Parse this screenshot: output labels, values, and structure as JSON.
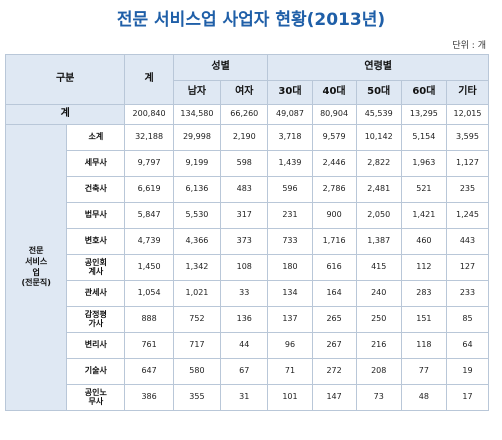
{
  "title": "전문 서비스업 사업자 현황(2013년)",
  "unit": "단위 : 개",
  "header": {
    "group": "구분",
    "total": "계",
    "gender": "성별",
    "male": "남자",
    "female": "여자",
    "age": "연령별",
    "ages": [
      "30대",
      "40대",
      "50대",
      "60대",
      "기타"
    ]
  },
  "total_row": {
    "label": "계",
    "values": [
      "200,840",
      "134,580",
      "66,260",
      "49,087",
      "80,904",
      "45,539",
      "13,295",
      "12,015"
    ]
  },
  "category": "전문\n서비스\n업\n(전문직)",
  "rows": [
    {
      "label": "소계",
      "values": [
        "32,188",
        "29,998",
        "2,190",
        "3,718",
        "9,579",
        "10,142",
        "5,154",
        "3,595"
      ]
    },
    {
      "label": "세무사",
      "values": [
        "9,797",
        "9,199",
        "598",
        "1,439",
        "2,446",
        "2,822",
        "1,963",
        "1,127"
      ]
    },
    {
      "label": "건축사",
      "values": [
        "6,619",
        "6,136",
        "483",
        "596",
        "2,786",
        "2,481",
        "521",
        "235"
      ]
    },
    {
      "label": "법무사",
      "values": [
        "5,847",
        "5,530",
        "317",
        "231",
        "900",
        "2,050",
        "1,421",
        "1,245"
      ]
    },
    {
      "label": "변호사",
      "values": [
        "4,739",
        "4,366",
        "373",
        "733",
        "1,716",
        "1,387",
        "460",
        "443"
      ]
    },
    {
      "label": "공인회\n계사",
      "values": [
        "1,450",
        "1,342",
        "108",
        "180",
        "616",
        "415",
        "112",
        "127"
      ]
    },
    {
      "label": "관세사",
      "values": [
        "1,054",
        "1,021",
        "33",
        "134",
        "164",
        "240",
        "283",
        "233"
      ]
    },
    {
      "label": "감정평\n가사",
      "values": [
        "888",
        "752",
        "136",
        "137",
        "265",
        "250",
        "151",
        "85"
      ]
    },
    {
      "label": "변리사",
      "values": [
        "761",
        "717",
        "44",
        "96",
        "267",
        "216",
        "118",
        "64"
      ]
    },
    {
      "label": "기술사",
      "values": [
        "647",
        "580",
        "67",
        "71",
        "272",
        "208",
        "77",
        "19"
      ]
    },
    {
      "label": "공인노\n무사",
      "values": [
        "386",
        "355",
        "31",
        "101",
        "147",
        "73",
        "48",
        "17"
      ]
    }
  ]
}
